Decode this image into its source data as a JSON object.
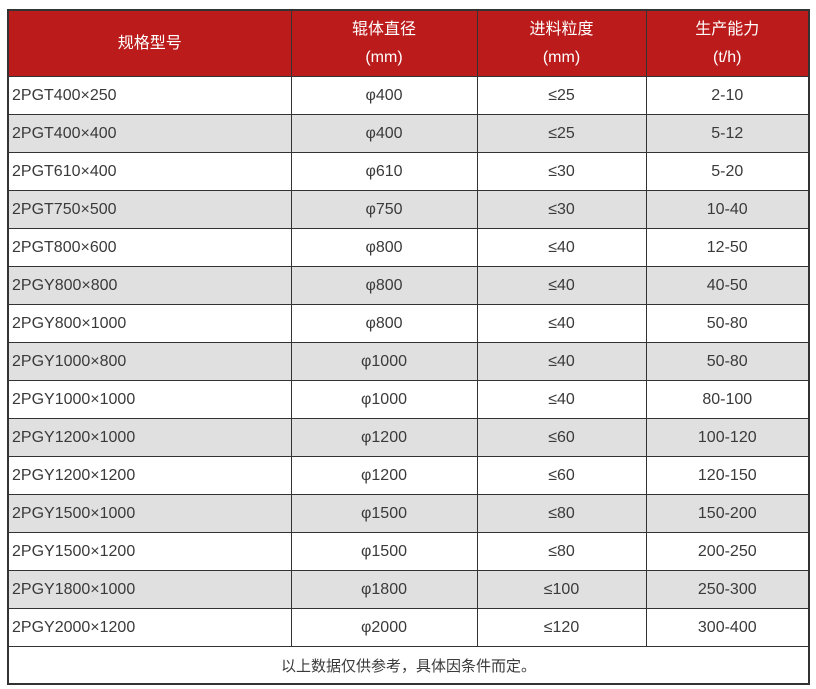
{
  "colors": {
    "header_bg": "#BC1B1B",
    "header_text": "#FFFFFF",
    "row_bg": "#FFFFFF",
    "row_alt_bg": "#E0E0E0",
    "border": "#333333",
    "body_text": "#3A3A3A"
  },
  "chart_data": {
    "type": "table",
    "columns": [
      {
        "label": "规格型号",
        "unit": ""
      },
      {
        "label": "辊体直径",
        "unit": "(mm)"
      },
      {
        "label": "进料粒度",
        "unit": "(mm)"
      },
      {
        "label": "生产能力",
        "unit": "(t/h)"
      }
    ],
    "rows": [
      [
        "2PGT400×250",
        "φ400",
        "≤25",
        "2-10"
      ],
      [
        "2PGT400×400",
        "φ400",
        "≤25",
        "5-12"
      ],
      [
        "2PGT610×400",
        "φ610",
        "≤30",
        "5-20"
      ],
      [
        "2PGT750×500",
        "φ750",
        "≤30",
        "10-40"
      ],
      [
        "2PGT800×600",
        "φ800",
        "≤40",
        "12-50"
      ],
      [
        "2PGY800×800",
        "φ800",
        "≤40",
        "40-50"
      ],
      [
        "2PGY800×1000",
        "φ800",
        "≤40",
        "50-80"
      ],
      [
        "2PGY1000×800",
        "φ1000",
        "≤40",
        "50-80"
      ],
      [
        "2PGY1000×1000",
        "φ1000",
        "≤40",
        "80-100"
      ],
      [
        "2PGY1200×1000",
        "φ1200",
        "≤60",
        "100-120"
      ],
      [
        "2PGY1200×1200",
        "φ1200",
        "≤60",
        "120-150"
      ],
      [
        "2PGY1500×1000",
        "φ1500",
        "≤80",
        "150-200"
      ],
      [
        "2PGY1500×1200",
        "φ1500",
        "≤80",
        "200-250"
      ],
      [
        "2PGY1800×1000",
        "φ1800",
        "≤100",
        "250-300"
      ],
      [
        "2PGY2000×1200",
        "φ2000",
        "≤120",
        "300-400"
      ]
    ],
    "footnote": "以上数据仅供参考，具体因条件而定。"
  }
}
